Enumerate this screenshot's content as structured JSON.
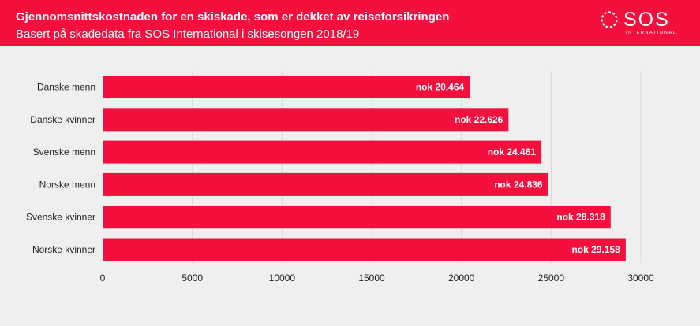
{
  "header": {
    "title": "Gjennomsnittskostnaden for en skiskade, som er dekket av reiseforsikringen",
    "subtitle": "Basert på skadedata fra SOS International i skisesongen 2018/19"
  },
  "logo": {
    "word": "SOS",
    "sub": "INTERNATIONAL"
  },
  "colors": {
    "brand": "#f50f3c",
    "background": "#efefef",
    "grid": "#d9d9d9"
  },
  "chart_data": {
    "type": "bar",
    "orientation": "horizontal",
    "title": "",
    "xlabel": "",
    "ylabel": "",
    "categories": [
      "Danske menn",
      "Danske kvinner",
      "Svenske menn",
      "Norske menn",
      "Svenske kvinner",
      "Norske kvinner"
    ],
    "values": [
      20464,
      22626,
      24461,
      24836,
      28318,
      29158
    ],
    "data_labels": [
      "nok 20.464",
      "nok 22.626",
      "nok 24.461",
      "nok 24.836",
      "nok 28.318",
      "nok 29.158"
    ],
    "xlim": [
      0,
      30000
    ],
    "xticks": [
      0,
      5000,
      10000,
      15000,
      20000,
      25000,
      30000
    ],
    "xtick_labels": [
      "0",
      "5000",
      "10000",
      "15000",
      "20000",
      "25000",
      "30000"
    ],
    "grid": true,
    "bar_color": "#f50f3c"
  }
}
